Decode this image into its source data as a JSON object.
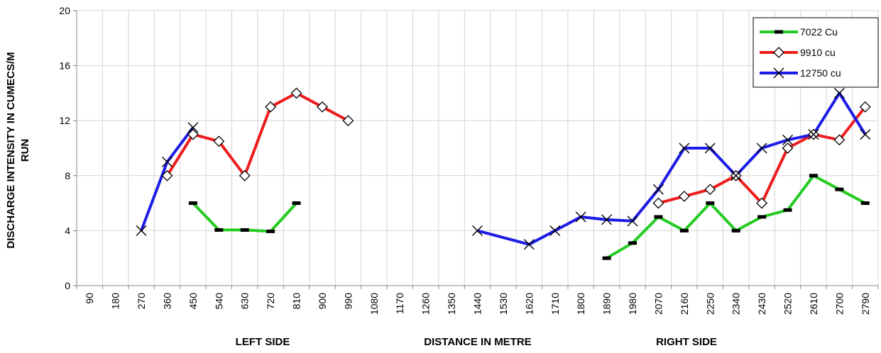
{
  "chart_data": {
    "type": "line",
    "ylabel_line1": "DISCHARGE INTENSITY IN CUMECS/M",
    "ylabel_line2": "RUN",
    "xlabel": "DISTANCE IN METRE",
    "left_label": "LEFT SIDE",
    "right_label": "RIGHT SIDE",
    "ylim": [
      0,
      20
    ],
    "yticks": [
      0,
      4,
      8,
      12,
      16,
      20
    ],
    "categories": [
      "90",
      "180",
      "270",
      "360",
      "450",
      "540",
      "630",
      "720",
      "810",
      "900",
      "990",
      "1080",
      "1170",
      "1260",
      "1350",
      "1440",
      "1530",
      "1620",
      "1710",
      "1800",
      "1890",
      "1980",
      "2070",
      "2160",
      "2250",
      "2340",
      "2430",
      "2520",
      "2610",
      "2700",
      "2790"
    ],
    "grid": true,
    "legend_position": "top-right",
    "series": [
      {
        "name": "7022 Cu",
        "color": "#22cc22",
        "marker": "dash",
        "segments": [
          [
            [
              450,
              6
            ],
            [
              540,
              4.05
            ],
            [
              630,
              4.05
            ],
            [
              720,
              3.95
            ],
            [
              810,
              6
            ]
          ],
          [
            [
              1890,
              2
            ],
            [
              1980,
              3.1
            ],
            [
              2070,
              5
            ],
            [
              2160,
              4
            ],
            [
              2250,
              6
            ],
            [
              2340,
              4
            ],
            [
              2430,
              5
            ],
            [
              2520,
              5.5
            ],
            [
              2610,
              8
            ],
            [
              2700,
              7
            ],
            [
              2790,
              6
            ]
          ]
        ]
      },
      {
        "name": "9910 cu",
        "color": "#ee1c1c",
        "marker": "diamond",
        "segments": [
          [
            [
              360,
              8
            ],
            [
              450,
              11
            ],
            [
              540,
              10.5
            ],
            [
              630,
              8
            ],
            [
              720,
              13
            ],
            [
              810,
              14
            ],
            [
              900,
              13
            ],
            [
              990,
              12
            ]
          ],
          [
            [
              2070,
              6
            ],
            [
              2160,
              6.5
            ],
            [
              2250,
              7
            ],
            [
              2340,
              8
            ],
            [
              2430,
              6
            ],
            [
              2520,
              10
            ],
            [
              2610,
              11
            ],
            [
              2700,
              10.6
            ],
            [
              2790,
              13
            ]
          ]
        ]
      },
      {
        "name": "12750 cu",
        "color": "#1c1ce6",
        "marker": "x",
        "segments": [
          [
            [
              270,
              4
            ],
            [
              360,
              9
            ],
            [
              450,
              11.5
            ]
          ],
          [
            [
              1440,
              4
            ],
            [
              1620,
              3
            ],
            [
              1710,
              4
            ],
            [
              1800,
              5
            ],
            [
              1890,
              4.8
            ],
            [
              1980,
              4.7
            ],
            [
              2070,
              7
            ],
            [
              2160,
              10
            ],
            [
              2250,
              10
            ],
            [
              2340,
              8
            ],
            [
              2430,
              10
            ],
            [
              2520,
              10.6
            ],
            [
              2610,
              11
            ],
            [
              2700,
              14
            ],
            [
              2790,
              11
            ]
          ]
        ]
      }
    ]
  }
}
